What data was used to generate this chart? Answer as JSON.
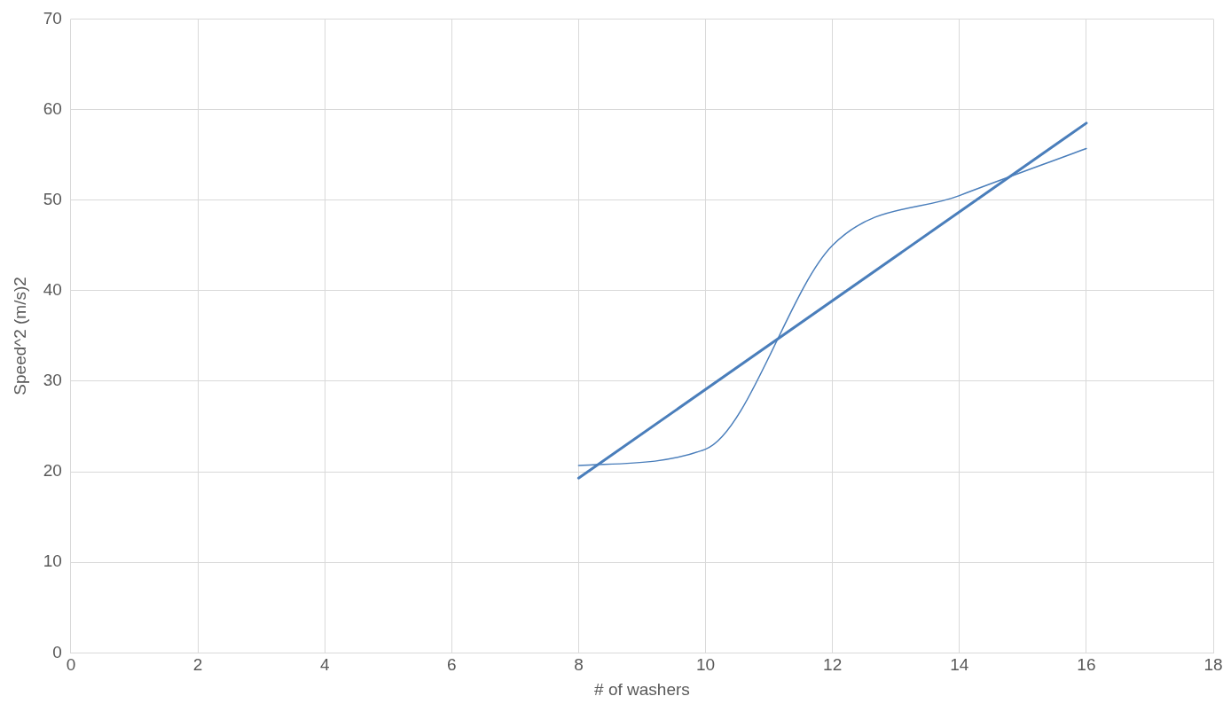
{
  "chart_data": {
    "type": "line",
    "xlabel": "# of washers",
    "ylabel": "Speed^2 (m/s)2",
    "xlim": [
      0,
      18
    ],
    "xticks": [
      0,
      2,
      4,
      6,
      8,
      10,
      12,
      14,
      16,
      18
    ],
    "ylim": [
      0,
      70
    ],
    "yticks": [
      0,
      10,
      20,
      30,
      40,
      50,
      60,
      70
    ],
    "grid": true,
    "legend": false,
    "marker": "none",
    "line_style": "solid",
    "series": [
      {
        "type": "line",
        "color": "#4a7ebb",
        "x": [
          8,
          10,
          12,
          14,
          16
        ],
        "values": [
          20.7,
          22.5,
          45,
          50.5,
          55.7
        ]
      },
      {
        "type": "line",
        "color": "#4a7ebb",
        "x": [
          8,
          16
        ],
        "values": [
          19.3,
          58.5
        ]
      }
    ]
  }
}
